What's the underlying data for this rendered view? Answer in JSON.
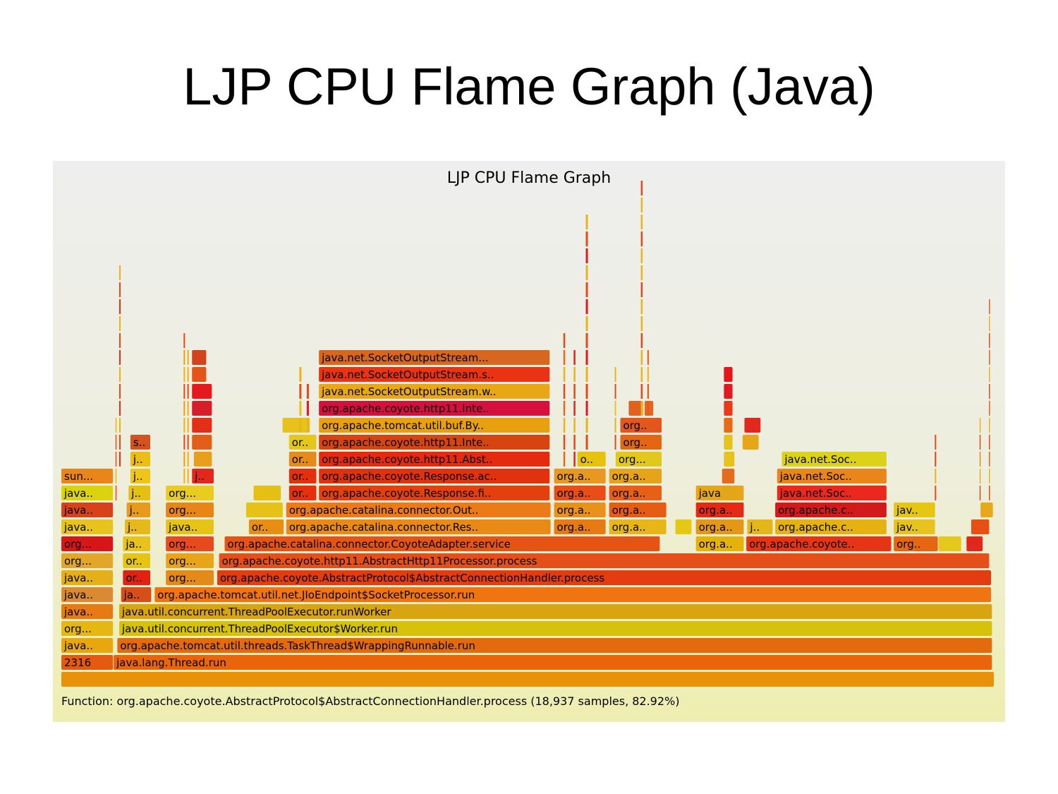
{
  "slide": {
    "title": "LJP CPU Flame Graph (Java)"
  },
  "chart_data": {
    "type": "flamegraph",
    "title": "LJP CPU Flame Graph",
    "status_text": "Function: org.apache.coyote.AbstractProtocol$AbstractConnectionHandler.process (18,937 samples, 82.92%)",
    "frames": [
      {
        "label": "",
        "depth": 0,
        "start": 0,
        "width": 1000,
        "color": "#e8920a"
      },
      {
        "label": "2316",
        "depth": 1,
        "start": 0,
        "width": 56,
        "color": "#e35b12"
      },
      {
        "label": "java.lang.Thread.run",
        "depth": 1,
        "start": 56,
        "width": 942,
        "color": "#e8650c"
      },
      {
        "label": "java..",
        "depth": 2,
        "start": 0,
        "width": 56,
        "color": "#e8a70f"
      },
      {
        "label": "org.apache.tomcat.util.threads.TaskThread$WrappingRunnable.run",
        "depth": 2,
        "start": 60,
        "width": 938,
        "color": "#e36a0d"
      },
      {
        "label": "org...",
        "depth": 3,
        "start": 0,
        "width": 56,
        "color": "#e5b712"
      },
      {
        "label": "java.util.concurrent.ThreadPoolExecutor$Worker.run",
        "depth": 3,
        "start": 62,
        "width": 936,
        "color": "#d7c20b"
      },
      {
        "label": "java..",
        "depth": 4,
        "start": 0,
        "width": 56,
        "color": "#e77a12"
      },
      {
        "label": "java.util.concurrent.ThreadPoolExecutor.runWorker",
        "depth": 4,
        "start": 62,
        "width": 936,
        "color": "#d8a510"
      },
      {
        "label": "java..",
        "depth": 5,
        "start": 0,
        "width": 56,
        "color": "#d98a32"
      },
      {
        "label": "ja..",
        "depth": 5,
        "start": 64,
        "width": 33,
        "color": "#d64e1a"
      },
      {
        "label": "org.apache.tomcat.util.net.JIoEndpoint$SocketProcessor.run",
        "depth": 5,
        "start": 100,
        "width": 897,
        "color": "#f07512"
      },
      {
        "label": "java..",
        "depth": 6,
        "start": 0,
        "width": 56,
        "color": "#e6ae18"
      },
      {
        "label": "or..",
        "depth": 6,
        "start": 66,
        "width": 30,
        "color": "#e4200f"
      },
      {
        "label": "org...",
        "depth": 6,
        "start": 112,
        "width": 52,
        "color": "#e58a18"
      },
      {
        "label": "org.apache.coyote.AbstractProtocol$AbstractConnectionHandler.process",
        "depth": 6,
        "start": 167,
        "width": 830,
        "color": "#e33c10"
      },
      {
        "label": "org...",
        "depth": 7,
        "start": 0,
        "width": 56,
        "color": "#e2a728"
      },
      {
        "label": "or..",
        "depth": 7,
        "start": 66,
        "width": 30,
        "color": "#e4c514"
      },
      {
        "label": "org...",
        "depth": 7,
        "start": 112,
        "width": 52,
        "color": "#e8a51a"
      },
      {
        "label": "org.apache.coyote.http11.AbstractHttp11Processor.process",
        "depth": 7,
        "start": 169,
        "width": 826,
        "color": "#e5501a"
      },
      {
        "label": "org...",
        "depth": 8,
        "start": 0,
        "width": 56,
        "color": "#d8161a"
      },
      {
        "label": "ja..",
        "depth": 8,
        "start": 66,
        "width": 30,
        "color": "#e8c31c"
      },
      {
        "label": "org...",
        "depth": 8,
        "start": 112,
        "width": 52,
        "color": "#e94a1d"
      },
      {
        "label": "org.apache.catalina.connector.CoyoteAdapter.service",
        "depth": 8,
        "start": 175,
        "width": 467,
        "color": "#e55315"
      },
      {
        "label": "org.a..",
        "depth": 8,
        "start": 680,
        "width": 52,
        "color": "#e5b20c"
      },
      {
        "label": "org.apache.coyote..",
        "depth": 8,
        "start": 734,
        "width": 156,
        "color": "#e73414"
      },
      {
        "label": "org..",
        "depth": 8,
        "start": 892,
        "width": 48,
        "color": "#e66612"
      },
      {
        "label": "java..",
        "depth": 9,
        "start": 0,
        "width": 56,
        "color": "#e8c21d"
      },
      {
        "label": "j..",
        "depth": 9,
        "start": 68,
        "width": 28,
        "color": "#e6b91a"
      },
      {
        "label": "java..",
        "depth": 9,
        "start": 112,
        "width": 52,
        "color": "#e5c415"
      },
      {
        "label": "or..",
        "depth": 9,
        "start": 201,
        "width": 38,
        "color": "#e78f14"
      },
      {
        "label": "org.apache.catalina.connector.Res..",
        "depth": 9,
        "start": 241,
        "width": 284,
        "color": "#ea8a16"
      },
      {
        "label": "org.a..",
        "depth": 9,
        "start": 528,
        "width": 56,
        "color": "#e67a14"
      },
      {
        "label": "org.a..",
        "depth": 9,
        "start": 587,
        "width": 62,
        "color": "#e7b618"
      },
      {
        "label": "org.a..",
        "depth": 9,
        "start": 680,
        "width": 52,
        "color": "#e39818"
      },
      {
        "label": "j..",
        "depth": 9,
        "start": 735,
        "width": 28,
        "color": "#e3b61a"
      },
      {
        "label": "org.apache.c..",
        "depth": 9,
        "start": 765,
        "width": 120,
        "color": "#e6b113"
      },
      {
        "label": "jav..",
        "depth": 9,
        "start": 892,
        "width": 45,
        "color": "#e7c31e"
      },
      {
        "label": "java..",
        "depth": 10,
        "start": 0,
        "width": 56,
        "color": "#d5421c"
      },
      {
        "label": "j..",
        "depth": 10,
        "start": 70,
        "width": 26,
        "color": "#e89a1c"
      },
      {
        "label": "org...",
        "depth": 10,
        "start": 112,
        "width": 52,
        "color": "#e78616"
      },
      {
        "label": "org.apache.catalina.connector.Out..",
        "depth": 10,
        "start": 241,
        "width": 284,
        "color": "#eb7a18"
      },
      {
        "label": "org.a..",
        "depth": 10,
        "start": 528,
        "width": 56,
        "color": "#e7921a"
      },
      {
        "label": "org.a..",
        "depth": 10,
        "start": 587,
        "width": 62,
        "color": "#e65c14"
      },
      {
        "label": "org.a..",
        "depth": 10,
        "start": 680,
        "width": 52,
        "color": "#e22a15"
      },
      {
        "label": "org.apache.c..",
        "depth": 10,
        "start": 765,
        "width": 120,
        "color": "#d21a1c"
      },
      {
        "label": "jav..",
        "depth": 10,
        "start": 892,
        "width": 45,
        "color": "#e5c613"
      },
      {
        "label": "java..",
        "depth": 11,
        "start": 0,
        "width": 56,
        "color": "#dcd30f"
      },
      {
        "label": "j..",
        "depth": 11,
        "start": 72,
        "width": 24,
        "color": "#e5c012"
      },
      {
        "label": "org...",
        "depth": 11,
        "start": 112,
        "width": 52,
        "color": "#eacc1f"
      },
      {
        "label": "or..",
        "depth": 11,
        "start": 244,
        "width": 30,
        "color": "#e3310f"
      },
      {
        "label": "org.apache.coyote.Response.fi..",
        "depth": 11,
        "start": 276,
        "width": 248,
        "color": "#e4400d"
      },
      {
        "label": "org.a..",
        "depth": 11,
        "start": 528,
        "width": 56,
        "color": "#e84e16"
      },
      {
        "label": "org.a..",
        "depth": 11,
        "start": 587,
        "width": 57,
        "color": "#e85f18"
      },
      {
        "label": "java...",
        "depth": 11,
        "start": 680,
        "width": 52,
        "color": "#e7a61a"
      },
      {
        "label": "java.net.Soc..",
        "depth": 11,
        "start": 767,
        "width": 118,
        "color": "#ea281d"
      },
      {
        "label": "sun...",
        "depth": 12,
        "start": 0,
        "width": 56,
        "color": "#e9861a"
      },
      {
        "label": "j..",
        "depth": 12,
        "start": 74,
        "width": 22,
        "color": "#eec61a"
      },
      {
        "label": "j..",
        "depth": 12,
        "start": 140,
        "width": 24,
        "color": "#e2281d"
      },
      {
        "label": "or..",
        "depth": 12,
        "start": 244,
        "width": 30,
        "color": "#e3310f"
      },
      {
        "label": "org.apache.coyote.Response.ac..",
        "depth": 12,
        "start": 276,
        "width": 248,
        "color": "#e1310f"
      },
      {
        "label": "org.a..",
        "depth": 12,
        "start": 528,
        "width": 56,
        "color": "#e79820"
      },
      {
        "label": "org.a..",
        "depth": 12,
        "start": 587,
        "width": 57,
        "color": "#e6a41b"
      },
      {
        "label": "java.net.Soc..",
        "depth": 12,
        "start": 767,
        "width": 118,
        "color": "#e98519"
      },
      {
        "label": "j..",
        "depth": 13,
        "start": 74,
        "width": 22,
        "color": "#ebbd15"
      },
      {
        "label": "or..",
        "depth": 13,
        "start": 244,
        "width": 30,
        "color": "#e48b19"
      },
      {
        "label": "org.apache.coyote.http11.Abst..",
        "depth": 13,
        "start": 276,
        "width": 248,
        "color": "#e42b0f"
      },
      {
        "label": "o..",
        "depth": 13,
        "start": 553,
        "width": 31,
        "color": "#e5c20e"
      },
      {
        "label": "org...",
        "depth": 13,
        "start": 594,
        "width": 50,
        "color": "#e1c81c"
      },
      {
        "label": "java.net.Soc..",
        "depth": 13,
        "start": 772,
        "width": 113,
        "color": "#dcd21a"
      },
      {
        "label": "s..",
        "depth": 14,
        "start": 74,
        "width": 22,
        "color": "#d2531f"
      },
      {
        "label": "or..",
        "depth": 14,
        "start": 244,
        "width": 30,
        "color": "#e5c61a"
      },
      {
        "label": "org.apache.coyote.http11.Inte..",
        "depth": 14,
        "start": 276,
        "width": 248,
        "color": "#d7440f"
      },
      {
        "label": "org..",
        "depth": 14,
        "start": 599,
        "width": 45,
        "color": "#e36712"
      },
      {
        "label": "org.apache.tomcat.util.buf.By..",
        "depth": 15,
        "start": 276,
        "width": 248,
        "color": "#e8a010"
      },
      {
        "label": "org..",
        "depth": 15,
        "start": 599,
        "width": 45,
        "color": "#e3561e"
      },
      {
        "label": "org.apache.coyote.http11.Inte..",
        "depth": 16,
        "start": 276,
        "width": 248,
        "color": "#d4103f"
      },
      {
        "label": "java.net.SocketOutputStream.w..",
        "depth": 17,
        "start": 276,
        "width": 248,
        "color": "#e8a714"
      },
      {
        "label": "java.net.SocketOutputStream.s..",
        "depth": 18,
        "start": 276,
        "width": 248,
        "color": "#e63414"
      },
      {
        "label": "java.net.SocketOutputStream...",
        "depth": 19,
        "start": 276,
        "width": 248,
        "color": "#d7661e"
      },
      {
        "label": "",
        "depth": 13,
        "start": 142,
        "width": 20,
        "color": "#e89f1a"
      },
      {
        "label": "",
        "depth": 14,
        "start": 140,
        "width": 22,
        "color": "#e35f18"
      },
      {
        "label": "",
        "depth": 15,
        "start": 140,
        "width": 22,
        "color": "#e23018"
      },
      {
        "label": "",
        "depth": 16,
        "start": 140,
        "width": 22,
        "color": "#d51e2a"
      },
      {
        "label": "",
        "depth": 17,
        "start": 140,
        "width": 22,
        "color": "#e31a1f"
      },
      {
        "label": "",
        "depth": 18,
        "start": 140,
        "width": 16,
        "color": "#e35418"
      },
      {
        "label": "",
        "depth": 19,
        "start": 140,
        "width": 16,
        "color": "#d2421e"
      },
      {
        "label": "",
        "depth": 10,
        "start": 198,
        "width": 40,
        "color": "#e5c215"
      },
      {
        "label": "",
        "depth": 11,
        "start": 206,
        "width": 30,
        "color": "#e4c015"
      },
      {
        "label": "",
        "depth": 15,
        "start": 237,
        "width": 30,
        "color": "#e7c21c"
      },
      {
        "label": "",
        "depth": 9,
        "start": 975,
        "width": 20,
        "color": "#e65014"
      },
      {
        "label": "",
        "depth": 8,
        "start": 940,
        "width": 25,
        "color": "#e6c71c"
      },
      {
        "label": "",
        "depth": 8,
        "start": 970,
        "width": 18,
        "color": "#e2281d"
      },
      {
        "label": "",
        "depth": 10,
        "start": 985,
        "width": 14,
        "color": "#e5a91a"
      },
      {
        "label": "",
        "depth": 9,
        "start": 658,
        "width": 18,
        "color": "#e5c715"
      },
      {
        "label": "",
        "depth": 11,
        "start": 708,
        "width": 14,
        "color": "#e3a51a"
      },
      {
        "label": "",
        "depth": 12,
        "start": 708,
        "width": 14,
        "color": "#e46a1e"
      },
      {
        "label": "",
        "depth": 13,
        "start": 710,
        "width": 12,
        "color": "#e8c21a"
      },
      {
        "label": "",
        "depth": 14,
        "start": 710,
        "width": 10,
        "color": "#e5c31a"
      },
      {
        "label": "",
        "depth": 15,
        "start": 710,
        "width": 10,
        "color": "#e86a15"
      },
      {
        "label": "",
        "depth": 16,
        "start": 710,
        "width": 10,
        "color": "#e63c1a"
      },
      {
        "label": "",
        "depth": 17,
        "start": 710,
        "width": 10,
        "color": "#e01a23"
      },
      {
        "label": "",
        "depth": 18,
        "start": 710,
        "width": 10,
        "color": "#e3161c"
      },
      {
        "label": "",
        "depth": 15,
        "start": 732,
        "width": 18,
        "color": "#e2281d"
      },
      {
        "label": "",
        "depth": 14,
        "start": 730,
        "width": 18,
        "color": "#e8a51a"
      },
      {
        "label": "",
        "depth": 16,
        "start": 608,
        "width": 16,
        "color": "#e0621e"
      },
      {
        "label": "",
        "depth": 16,
        "start": 625,
        "width": 10,
        "color": "#e5661e"
      }
    ],
    "spikes": [
      {
        "start": 58,
        "width": 1.5,
        "top": 15,
        "depth_from": 11,
        "color": "#e05018"
      },
      {
        "start": 62,
        "width": 2,
        "top": 24,
        "depth_from": 13,
        "color": "#e43312"
      },
      {
        "start": 131,
        "width": 2,
        "top": 20,
        "depth_from": 12,
        "color": "#e5a015"
      },
      {
        "start": 135,
        "width": 2,
        "top": 19,
        "depth_from": 12,
        "color": "#e8b018"
      },
      {
        "start": 255,
        "width": 3,
        "top": 18,
        "depth_from": 15,
        "color": "#e5c01a"
      },
      {
        "start": 263,
        "width": 3,
        "top": 17,
        "depth_from": 15,
        "color": "#e21a1f"
      },
      {
        "start": 538,
        "width": 2.5,
        "top": 20,
        "depth_from": 13,
        "color": "#e56a18"
      },
      {
        "start": 549,
        "width": 2.5,
        "top": 19,
        "depth_from": 13,
        "color": "#e3231f"
      },
      {
        "start": 562,
        "width": 3,
        "top": 27,
        "depth_from": 14,
        "color": "#df1822"
      },
      {
        "start": 593,
        "width": 2,
        "top": 18,
        "depth_from": 14,
        "color": "#e8c31a"
      },
      {
        "start": 621,
        "width": 2.5,
        "top": 29,
        "depth_from": 16,
        "color": "#e7b61a"
      },
      {
        "start": 628,
        "width": 2,
        "top": 19,
        "depth_from": 16,
        "color": "#e65a15"
      },
      {
        "start": 936,
        "width": 2,
        "top": 14,
        "depth_from": 11,
        "color": "#e14018"
      },
      {
        "start": 984,
        "width": 1.5,
        "top": 15,
        "depth_from": 11,
        "color": "#e88a1a"
      },
      {
        "start": 994,
        "width": 1.5,
        "top": 22,
        "depth_from": 11,
        "color": "#e66012"
      }
    ]
  }
}
